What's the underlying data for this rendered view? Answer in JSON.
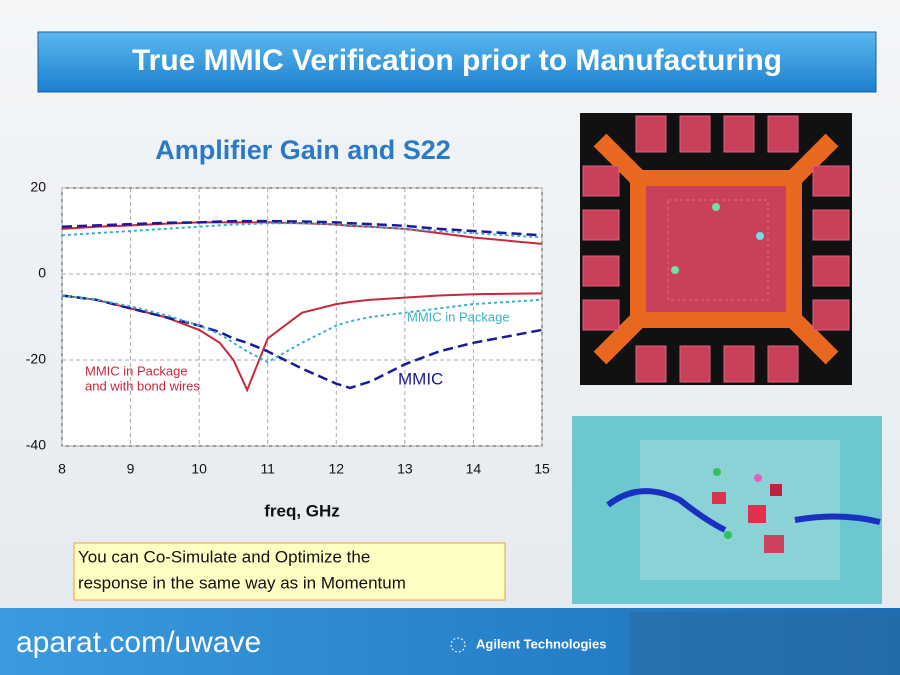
{
  "slide_title": "True MMIC Verification prior to Manufacturing",
  "callout": [
    "You can Co-Simulate and Optimize the",
    "response in the same way as in Momentum"
  ],
  "watermark": "aparat.com/uwave",
  "footer_logo": "Agilent Technologies",
  "chart_data": {
    "type": "line",
    "title": "Amplifier Gain and S22",
    "x_label": "freq, GHz",
    "x": [
      8,
      8.5,
      9,
      9.5,
      10,
      10.3,
      10.5,
      10.7,
      11,
      11.5,
      12,
      12.2,
      12.5,
      13,
      13.5,
      14,
      15
    ],
    "series": [
      {
        "color": "#c8283c",
        "style": "solid",
        "values": [
          10.5,
          11,
          11.3,
          11.7,
          12,
          12,
          12,
          12,
          12,
          11.8,
          11.5,
          11.2,
          11,
          10.5,
          9.5,
          8.5,
          7
        ]
      },
      {
        "color": "#1a1a9c",
        "style": "dashed",
        "values": [
          11,
          11.3,
          11.6,
          11.9,
          12,
          12.2,
          12.3,
          12.3,
          12.3,
          12.2,
          12,
          11.8,
          11.6,
          11.2,
          10.5,
          10,
          9
        ]
      },
      {
        "color": "#3ab0c8",
        "style": "dotted",
        "values": [
          9,
          9.5,
          10,
          10.5,
          11,
          11.3,
          11.5,
          11.6,
          11.8,
          11.8,
          11.6,
          11.3,
          11,
          10.5,
          10,
          9.5,
          8.5
        ]
      },
      {
        "color": "#c8283c",
        "style": "solid",
        "values": [
          -5,
          -6,
          -8,
          -10,
          -13,
          -16,
          -20,
          -27,
          -15,
          -9,
          -7,
          -6.5,
          -6,
          -5.5,
          -5,
          -4.7,
          -4.5
        ]
      },
      {
        "color": "#1a1a9c",
        "style": "dashed",
        "values": [
          -5,
          -6,
          -8,
          -10,
          -12,
          -13.5,
          -15,
          -16,
          -18,
          -22,
          -25.5,
          -26.5,
          -25,
          -21,
          -18,
          -16,
          -13
        ]
      },
      {
        "color": "#3ab0c8",
        "style": "dotted",
        "values": [
          -5,
          -6,
          -7.5,
          -9.5,
          -12,
          -14,
          -16,
          -18,
          -20.5,
          -16,
          -12,
          -11,
          -10,
          -9,
          -8,
          -7,
          -6
        ]
      }
    ],
    "annotations": [
      {
        "color": "#c8283c",
        "lines": [
          "MMIC in Package",
          "and with bond wires"
        ]
      },
      {
        "color": "#3ab0c8",
        "lines": [
          "MMIC in Package"
        ]
      },
      {
        "color": "#1a1a9c",
        "lines": [
          "MMIC"
        ]
      }
    ],
    "xlim": [
      8,
      15
    ],
    "xticks": [
      8,
      9,
      10,
      11,
      12,
      13,
      14,
      15
    ],
    "ylim": [
      -40,
      20
    ],
    "yticks": [
      -40,
      -20,
      0,
      20
    ],
    "grid": true
  }
}
